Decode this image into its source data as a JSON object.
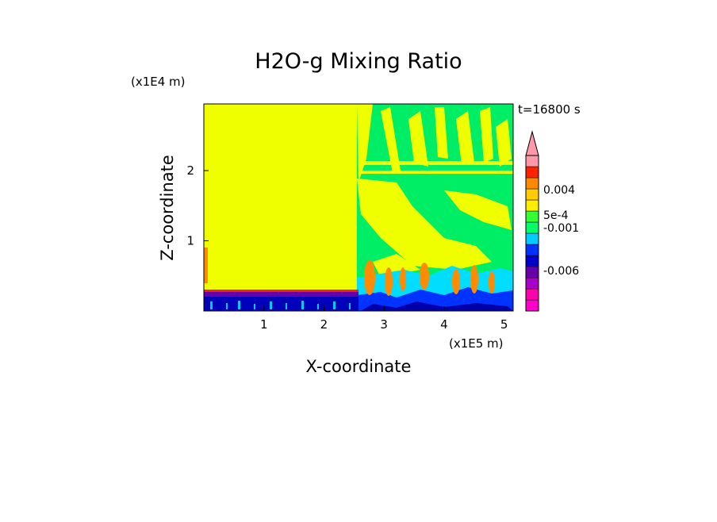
{
  "chart_data": {
    "type": "heatmap",
    "title": "H2O-g Mixing Ratio",
    "xlabel": "X-coordinate",
    "ylabel": "Z-coordinate",
    "x_unit": "(x1E5 m)",
    "y_unit": "(x1E4 m)",
    "time_label": "t=16800 s",
    "xlim": [
      0,
      5.15
    ],
    "ylim": [
      0,
      2.95
    ],
    "xticks": [
      "1",
      "2",
      "3",
      "4",
      "5"
    ],
    "yticks": [
      "1",
      "2"
    ],
    "colorbar": {
      "colors": [
        "#ff00cc",
        "#ff00aa",
        "#aa00cc",
        "#6600aa",
        "#0000cc",
        "#0033ff",
        "#00ccff",
        "#00ff66",
        "#33ff33",
        "#ffee00",
        "#ffcc00",
        "#ff8800",
        "#ff2200",
        "#ff99aa"
      ],
      "tick_labels": [
        "0.004",
        "5e-4",
        "-0.001",
        "-0.006"
      ]
    },
    "fields": {
      "background_value_color": "#f0ff00",
      "surface_layer_color": "#0000bb",
      "mid_layer_color": "#00ee66",
      "plume_color": "#ff8c00"
    }
  }
}
